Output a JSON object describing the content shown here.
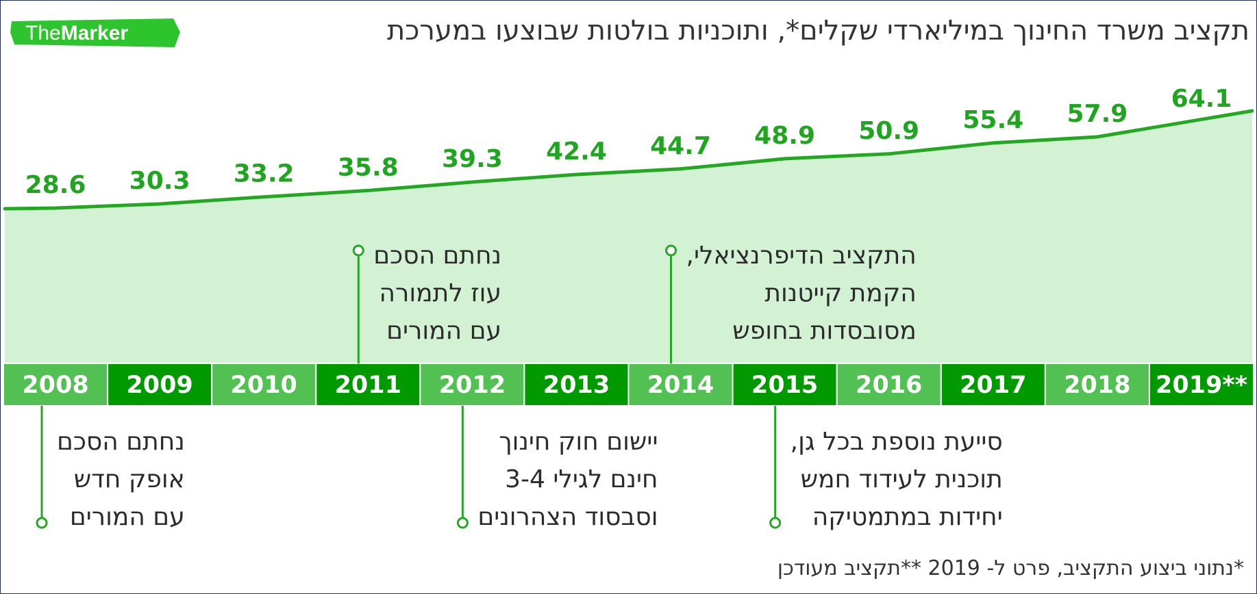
{
  "title": "תקציב משרד החינוך במיליארדי שקלים*, ותוכניות בולטות שבוצעו במערכת",
  "logo": {
    "text_the": "The",
    "text_marker": "Marker"
  },
  "footnote": "*נתוני ביצוע התקציב, פרט ל- 2019 **תקציב מעודכן",
  "colors": {
    "line": "#24a824",
    "area": "#d3f1d3",
    "bar_dark": "#009900",
    "bar_light": "#52c052",
    "value_text": "#1fa51f",
    "logo_bg": "#2ec42e"
  },
  "chart_data": {
    "type": "area",
    "categories": [
      "2008",
      "2009",
      "2010",
      "2011",
      "2012",
      "2013",
      "2014",
      "2015",
      "2016",
      "2017",
      "2018",
      "2019**"
    ],
    "values": [
      28.6,
      30.3,
      33.2,
      35.8,
      39.3,
      42.4,
      44.7,
      48.9,
      50.9,
      55.4,
      57.9,
      64.1
    ],
    "value_labels": [
      "28.6",
      "30.3",
      "33.2",
      "35.8",
      "39.3",
      "42.4",
      "44.7",
      "48.9",
      "50.9",
      "55.4",
      "57.9",
      "64.1"
    ],
    "title": "תקציב משרד החינוך במיליארדי שקלים*, ותוכניות בולטות שבוצעו במערכת",
    "xlabel": "",
    "ylabel": "",
    "grid": false,
    "legend": "none"
  },
  "annotations": [
    {
      "year": "2008",
      "lines": [
        "נחתם הסכם",
        "אופק חדש",
        "עם המורים"
      ]
    },
    {
      "year": "2011",
      "lines": [
        "נחתם הסכם",
        "עוז לתמורה",
        "עם המורים"
      ]
    },
    {
      "year": "2012",
      "lines": [
        "יישום חוק חינוך",
        "חינם לגילי 3-4",
        "וסבסוד הצהרונים"
      ]
    },
    {
      "year": "2014",
      "lines": [
        "התקציב הדיפרנציאלי,",
        "הקמת קייטנות",
        "מסובסדות בחופש"
      ]
    },
    {
      "year": "2015",
      "lines": [
        "סייעת נוספת בכל גן,",
        "תוכנית לעידוד חמש",
        "יחידות במתמטיקה"
      ]
    }
  ]
}
